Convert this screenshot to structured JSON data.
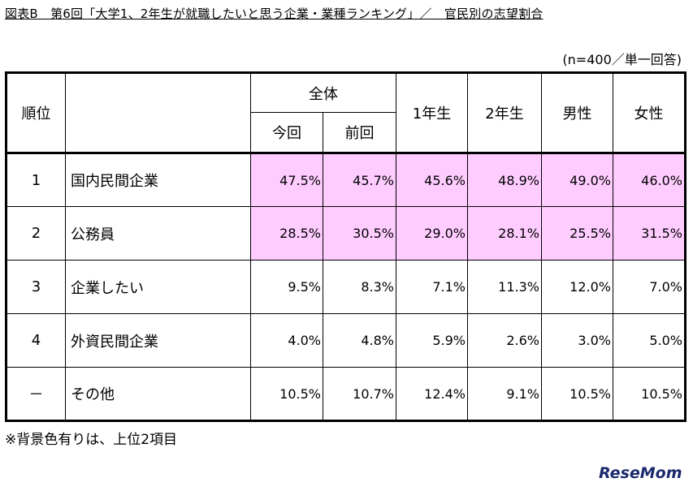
{
  "title": "図表B　第6回「大学1、2年生が就職したいと思う企業・業種ランキング」／　官民別の志望割合",
  "sample_note": "(n=400／単一回答)",
  "table": {
    "header": {
      "rank": "順位",
      "overall": "全体",
      "current": "今回",
      "previous": "前回",
      "year1": "1年生",
      "year2": "2年生",
      "male": "男性",
      "female": "女性"
    },
    "rows": [
      {
        "rank": "1",
        "label": "国内民間企業",
        "values": [
          "47.5%",
          "45.7%",
          "45.6%",
          "48.9%",
          "49.0%",
          "46.0%"
        ],
        "highlight": true
      },
      {
        "rank": "2",
        "label": "公務員",
        "values": [
          "28.5%",
          "30.5%",
          "29.0%",
          "28.1%",
          "25.5%",
          "31.5%"
        ],
        "highlight": true
      },
      {
        "rank": "3",
        "label": "企業したい",
        "values": [
          "9.5%",
          "8.3%",
          "7.1%",
          "11.3%",
          "12.0%",
          "7.0%"
        ],
        "highlight": false
      },
      {
        "rank": "4",
        "label": "外資民間企業",
        "values": [
          "4.0%",
          "4.8%",
          "5.9%",
          "2.6%",
          "3.0%",
          "5.0%"
        ],
        "highlight": false
      },
      {
        "rank": "－",
        "label": "その他",
        "values": [
          "10.5%",
          "10.7%",
          "12.4%",
          "9.1%",
          "10.5%",
          "10.5%"
        ],
        "highlight": false
      }
    ]
  },
  "footnote": "※背景色有りは、上位2項目",
  "logo": "ReseMom",
  "colors": {
    "highlight": "#ffccff",
    "logo": "#1a2a6c"
  }
}
